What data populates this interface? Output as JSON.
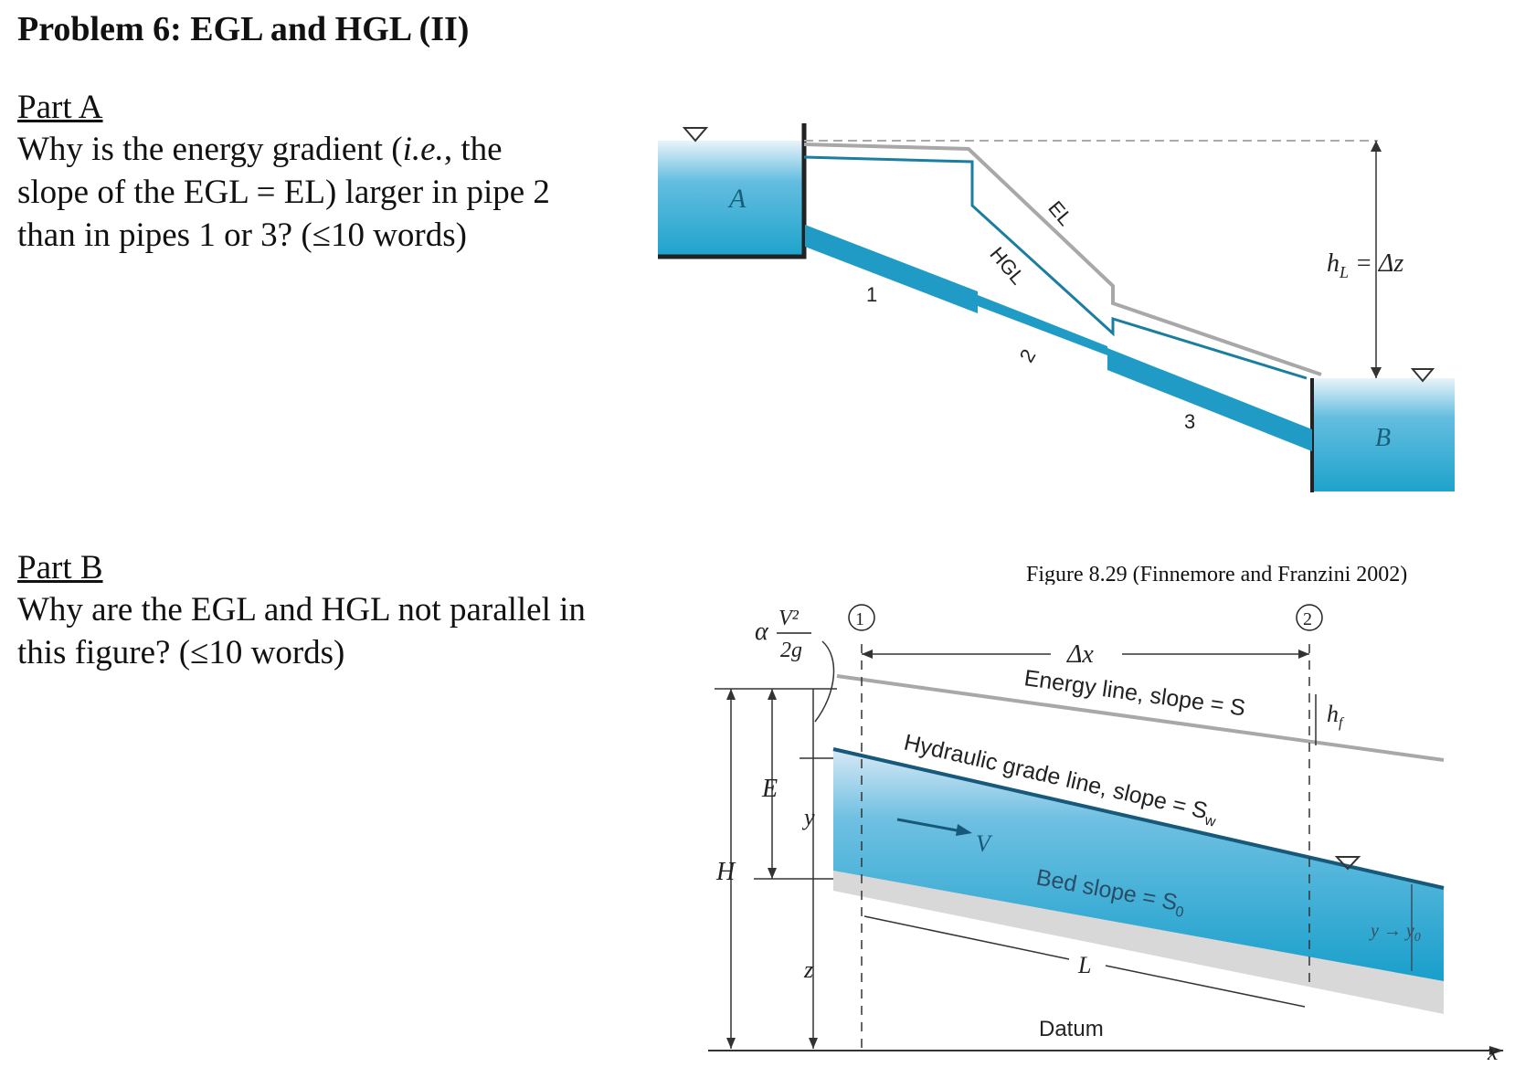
{
  "title": "Problem 6: EGL and HGL (II)",
  "partA": {
    "heading": "Part A",
    "q_before": "Why is the energy gradient (",
    "q_ie": "i.e.",
    "q_line1_end": ", the",
    "q_line2": "slope of the EGL = EL) larger in pipe 2",
    "q_line3": "than in pipes 1 or 3? (≤10 words)"
  },
  "partB": {
    "heading": "Part B",
    "q_line1": "Why are the EGL and HGL not parallel in",
    "q_line2": "this figure? (≤10 words)"
  },
  "figure1": {
    "caption": "Figure 8.29 (Finnemore and Franzini 2002)",
    "reservoir_a": "A",
    "reservoir_b": "B",
    "el_label": "EL",
    "hgl_label": "HGL",
    "pipe1": "1",
    "pipe2": "2",
    "pipe3": "3",
    "head_loss_label": "h",
    "head_loss_sub": "L",
    "head_loss_rhs": " = Δz",
    "water_color": "#2aa8cf",
    "line_color": "#1b7ea0",
    "el_color": "#a8a8a8"
  },
  "figure2": {
    "section1": "1",
    "section2": "2",
    "velocity_head_alpha": "α",
    "velocity_head_num": "V²",
    "velocity_head_den": "2g",
    "dx": "Δx",
    "energy_line": "Energy line, slope = S",
    "hf_main": "h",
    "hf_sub": "f",
    "hgl": "Hydraulic grade line, slope = S",
    "hgl_sub": "w",
    "bed": "Bed slope = S",
    "bed_sub": "0",
    "E": "E",
    "y": "y",
    "H": "H",
    "z": "z",
    "V": "V",
    "L": "L",
    "datum": "Datum",
    "x_axis": "x",
    "depth_right": "y → y",
    "depth_right_sub": "0"
  }
}
